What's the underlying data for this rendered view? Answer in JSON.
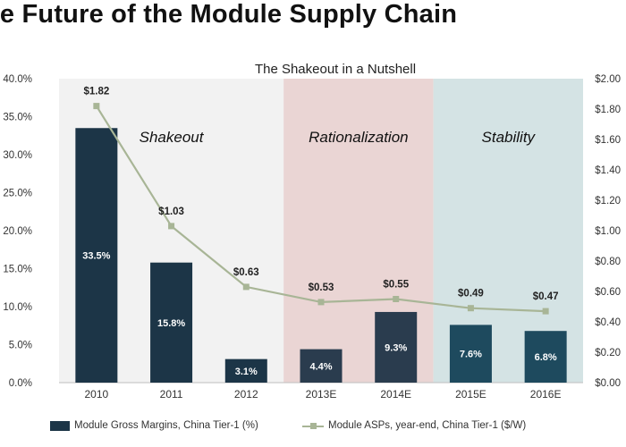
{
  "page": {
    "title": "he Future of the Module Supply Chain"
  },
  "chart_data": {
    "type": "bar+line",
    "title": "The Shakeout in a Nutshell",
    "categories": [
      "2010",
      "2011",
      "2012",
      "2013E",
      "2014E",
      "2015E",
      "2016E"
    ],
    "series": [
      {
        "name": "Module Gross Margins, China Tier-1 (%)",
        "type": "bar",
        "axis": "left",
        "values": [
          33.5,
          15.8,
          3.1,
          4.4,
          9.3,
          7.6,
          6.8
        ],
        "labels": [
          "33.5%",
          "15.8%",
          "3.1%",
          "4.4%",
          "9.3%",
          "7.6%",
          "6.8%"
        ]
      },
      {
        "name": "Module ASPs, year-end, China Tier-1 ($/W)",
        "type": "line",
        "axis": "right",
        "values": [
          1.82,
          1.03,
          0.63,
          0.53,
          0.55,
          0.49,
          0.47
        ],
        "labels": [
          "$1.82",
          "$1.03",
          "$0.63",
          "$0.53",
          "$0.55",
          "$0.49",
          "$0.47"
        ]
      }
    ],
    "y_left": {
      "ylim": [
        0,
        40
      ],
      "ticks": [
        0,
        5,
        10,
        15,
        20,
        25,
        30,
        35,
        40
      ],
      "tick_labels": [
        "0.0%",
        "5.0%",
        "10.0%",
        "15.0%",
        "20.0%",
        "25.0%",
        "30.0%",
        "35.0%",
        "40.0%"
      ]
    },
    "y_right": {
      "ylim": [
        0,
        2
      ],
      "ticks": [
        0,
        0.2,
        0.4,
        0.6,
        0.8,
        1.0,
        1.2,
        1.4,
        1.6,
        1.8,
        2.0
      ],
      "tick_labels": [
        "$0.00",
        "$0.20",
        "$0.40",
        "$0.60",
        "$0.80",
        "$1.00",
        "$1.20",
        "$1.40",
        "$1.60",
        "$1.80",
        "$2.00"
      ]
    },
    "phases": [
      {
        "label": "Shakeout",
        "start": 0,
        "end": 2,
        "color": "#f2f2f2"
      },
      {
        "label": "Rationalization",
        "start": 3,
        "end": 4,
        "color": "#ead5d4"
      },
      {
        "label": "Stability",
        "start": 5,
        "end": 6,
        "color": "#d4e3e4"
      }
    ],
    "colors": {
      "bar_dark": "#1c3547",
      "bar_mid": "#2a3c4e",
      "bar_teal": "#1e4a5e",
      "line": "#a8b596"
    },
    "legend_position": "bottom"
  }
}
